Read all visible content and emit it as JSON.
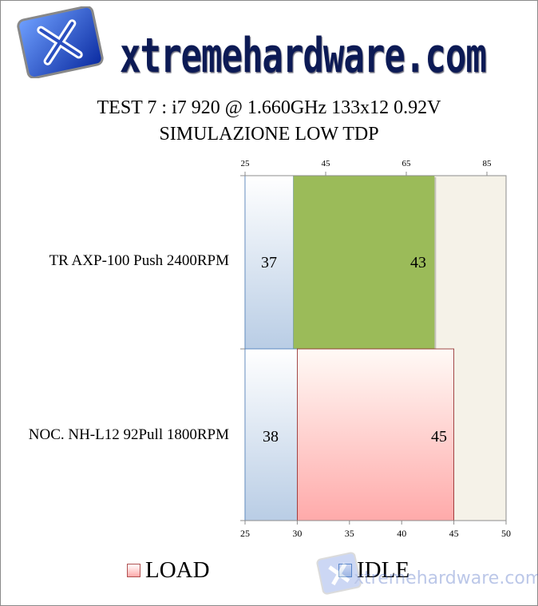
{
  "logo": {
    "text": "xtremehardware.com",
    "icon": "x-logo-icon"
  },
  "watermark": {
    "text": "xtremehardware.com"
  },
  "chart_data": {
    "type": "bar",
    "orientation": "horizontal",
    "stacked": true,
    "title": "TEST 7 : i7 920 @ 1.660GHz 133x12 0.92V",
    "subtitle": "SIMULAZIONE LOW TDP",
    "categories": [
      "TR AXP-100 Push 2400RPM",
      "NOC. NH-L12 92Pull 1800RPM"
    ],
    "series": [
      {
        "name": "IDLE",
        "values": [
          37,
          38
        ],
        "color": "#b9cde5"
      },
      {
        "name": "LOAD",
        "values": [
          43,
          45
        ],
        "colors": [
          "#9bbb59",
          "#ffaaaa"
        ]
      }
    ],
    "x_top": {
      "ticks": [
        25,
        45,
        65,
        85
      ],
      "range": [
        25,
        90
      ]
    },
    "x_bottom": {
      "ticks": [
        25,
        30,
        35,
        40,
        45,
        50
      ],
      "range": [
        25,
        50
      ]
    },
    "grid": false,
    "legend": {
      "placement": "bottom",
      "entries": [
        "LOAD",
        "IDLE"
      ]
    },
    "plot_background": "#f5f2e8"
  }
}
